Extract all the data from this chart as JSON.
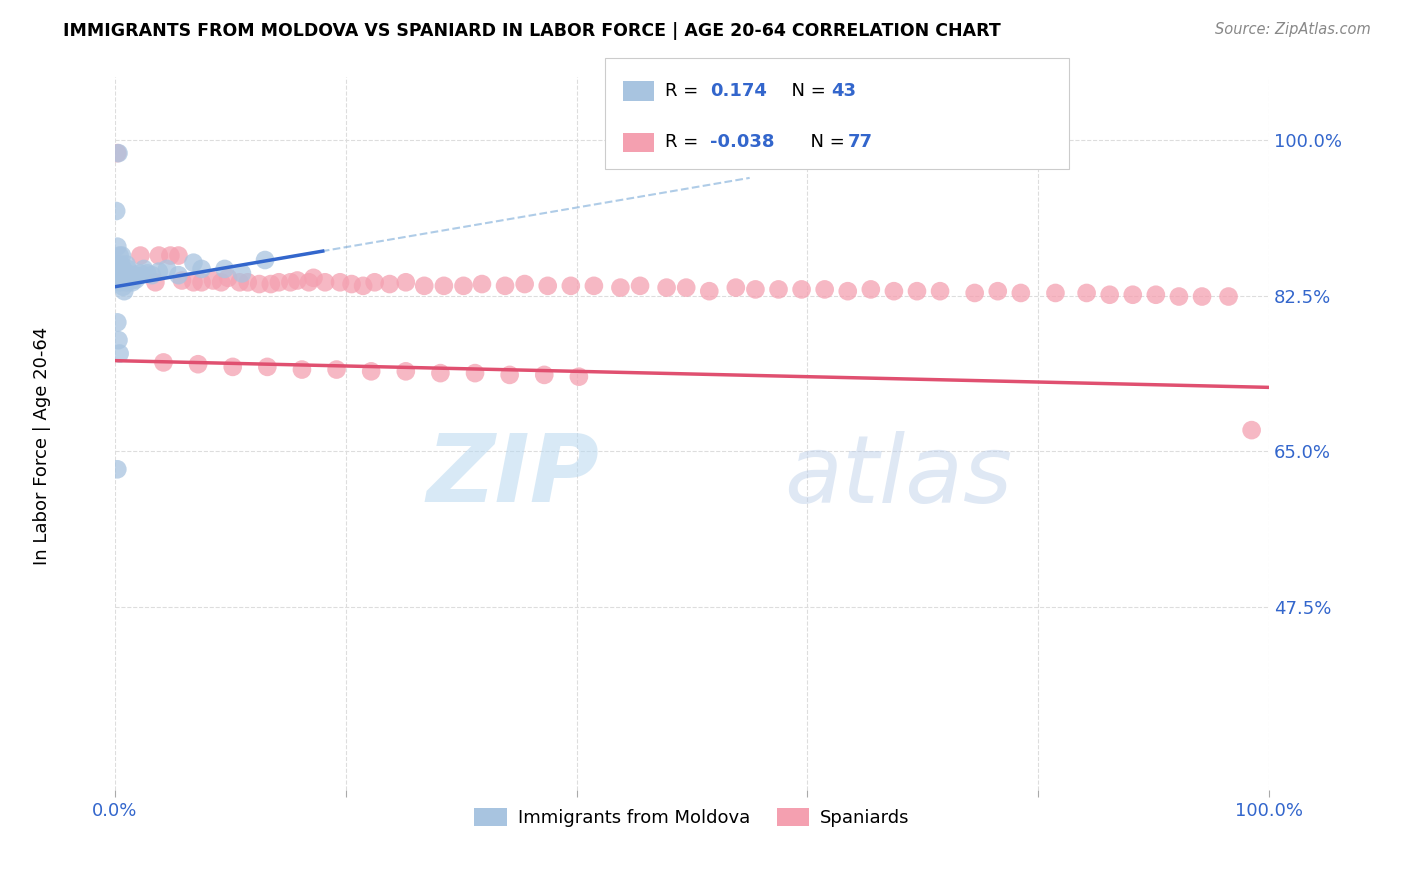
{
  "title": "IMMIGRANTS FROM MOLDOVA VS SPANIARD IN LABOR FORCE | AGE 20-64 CORRELATION CHART",
  "source": "Source: ZipAtlas.com",
  "ylabel": "In Labor Force | Age 20-64",
  "xlim": [
    0.0,
    1.0
  ],
  "ylim": [
    0.27,
    1.07
  ],
  "xticks": [
    0.0,
    0.2,
    0.4,
    0.6,
    0.8,
    1.0
  ],
  "xticklabels": [
    "0.0%",
    "",
    "",
    "",
    "",
    "100.0%"
  ],
  "ytick_values": [
    0.475,
    0.65,
    0.825,
    1.0
  ],
  "ytick_labels": [
    "47.5%",
    "65.0%",
    "82.5%",
    "100.0%"
  ],
  "legend_r_moldova": "0.174",
  "legend_n_moldova": "43",
  "legend_r_spaniard": "-0.038",
  "legend_n_spaniard": "77",
  "color_moldova": "#a8c4e0",
  "color_spaniard": "#f4a0b0",
  "line_color_moldova": "#3366cc",
  "line_color_spaniard": "#e05070",
  "watermark_zip": "ZIP",
  "watermark_atlas": "atlas",
  "moldova_x": [
    0.001,
    0.002,
    0.002,
    0.003,
    0.003,
    0.004,
    0.004,
    0.005,
    0.005,
    0.006,
    0.006,
    0.007,
    0.007,
    0.008,
    0.008,
    0.009,
    0.01,
    0.01,
    0.011,
    0.012,
    0.013,
    0.014,
    0.015,
    0.016,
    0.018,
    0.02,
    0.022,
    0.025,
    0.028,
    0.032,
    0.038,
    0.045,
    0.055,
    0.068,
    0.075,
    0.095,
    0.11,
    0.13,
    0.002,
    0.003,
    0.004,
    0.002,
    0.003
  ],
  "moldova_y": [
    0.92,
    0.88,
    0.86,
    0.85,
    0.84,
    0.87,
    0.85,
    0.86,
    0.84,
    0.87,
    0.845,
    0.855,
    0.835,
    0.85,
    0.83,
    0.85,
    0.86,
    0.84,
    0.855,
    0.848,
    0.845,
    0.842,
    0.84,
    0.848,
    0.843,
    0.847,
    0.85,
    0.855,
    0.85,
    0.848,
    0.852,
    0.855,
    0.848,
    0.862,
    0.855,
    0.855,
    0.85,
    0.865,
    0.795,
    0.775,
    0.76,
    0.63,
    0.985
  ],
  "spaniard_x": [
    0.002,
    0.022,
    0.035,
    0.038,
    0.048,
    0.055,
    0.058,
    0.068,
    0.075,
    0.085,
    0.092,
    0.098,
    0.108,
    0.115,
    0.125,
    0.135,
    0.142,
    0.152,
    0.158,
    0.168,
    0.172,
    0.182,
    0.195,
    0.205,
    0.215,
    0.225,
    0.238,
    0.252,
    0.268,
    0.285,
    0.302,
    0.318,
    0.338,
    0.355,
    0.375,
    0.395,
    0.415,
    0.438,
    0.455,
    0.478,
    0.495,
    0.515,
    0.538,
    0.555,
    0.575,
    0.595,
    0.615,
    0.635,
    0.655,
    0.675,
    0.695,
    0.715,
    0.745,
    0.765,
    0.785,
    0.815,
    0.842,
    0.862,
    0.882,
    0.902,
    0.922,
    0.942,
    0.965,
    0.985,
    0.042,
    0.072,
    0.102,
    0.132,
    0.162,
    0.192,
    0.222,
    0.252,
    0.282,
    0.312,
    0.342,
    0.372,
    0.402
  ],
  "spaniard_y": [
    0.985,
    0.87,
    0.84,
    0.87,
    0.87,
    0.87,
    0.842,
    0.84,
    0.84,
    0.842,
    0.84,
    0.845,
    0.84,
    0.84,
    0.838,
    0.838,
    0.84,
    0.84,
    0.842,
    0.84,
    0.845,
    0.84,
    0.84,
    0.838,
    0.836,
    0.84,
    0.838,
    0.84,
    0.836,
    0.836,
    0.836,
    0.838,
    0.836,
    0.838,
    0.836,
    0.836,
    0.836,
    0.834,
    0.836,
    0.834,
    0.834,
    0.83,
    0.834,
    0.832,
    0.832,
    0.832,
    0.832,
    0.83,
    0.832,
    0.83,
    0.83,
    0.83,
    0.828,
    0.83,
    0.828,
    0.828,
    0.828,
    0.826,
    0.826,
    0.826,
    0.824,
    0.824,
    0.824,
    0.674,
    0.75,
    0.748,
    0.745,
    0.745,
    0.742,
    0.742,
    0.74,
    0.74,
    0.738,
    0.738,
    0.736,
    0.736,
    0.734
  ]
}
